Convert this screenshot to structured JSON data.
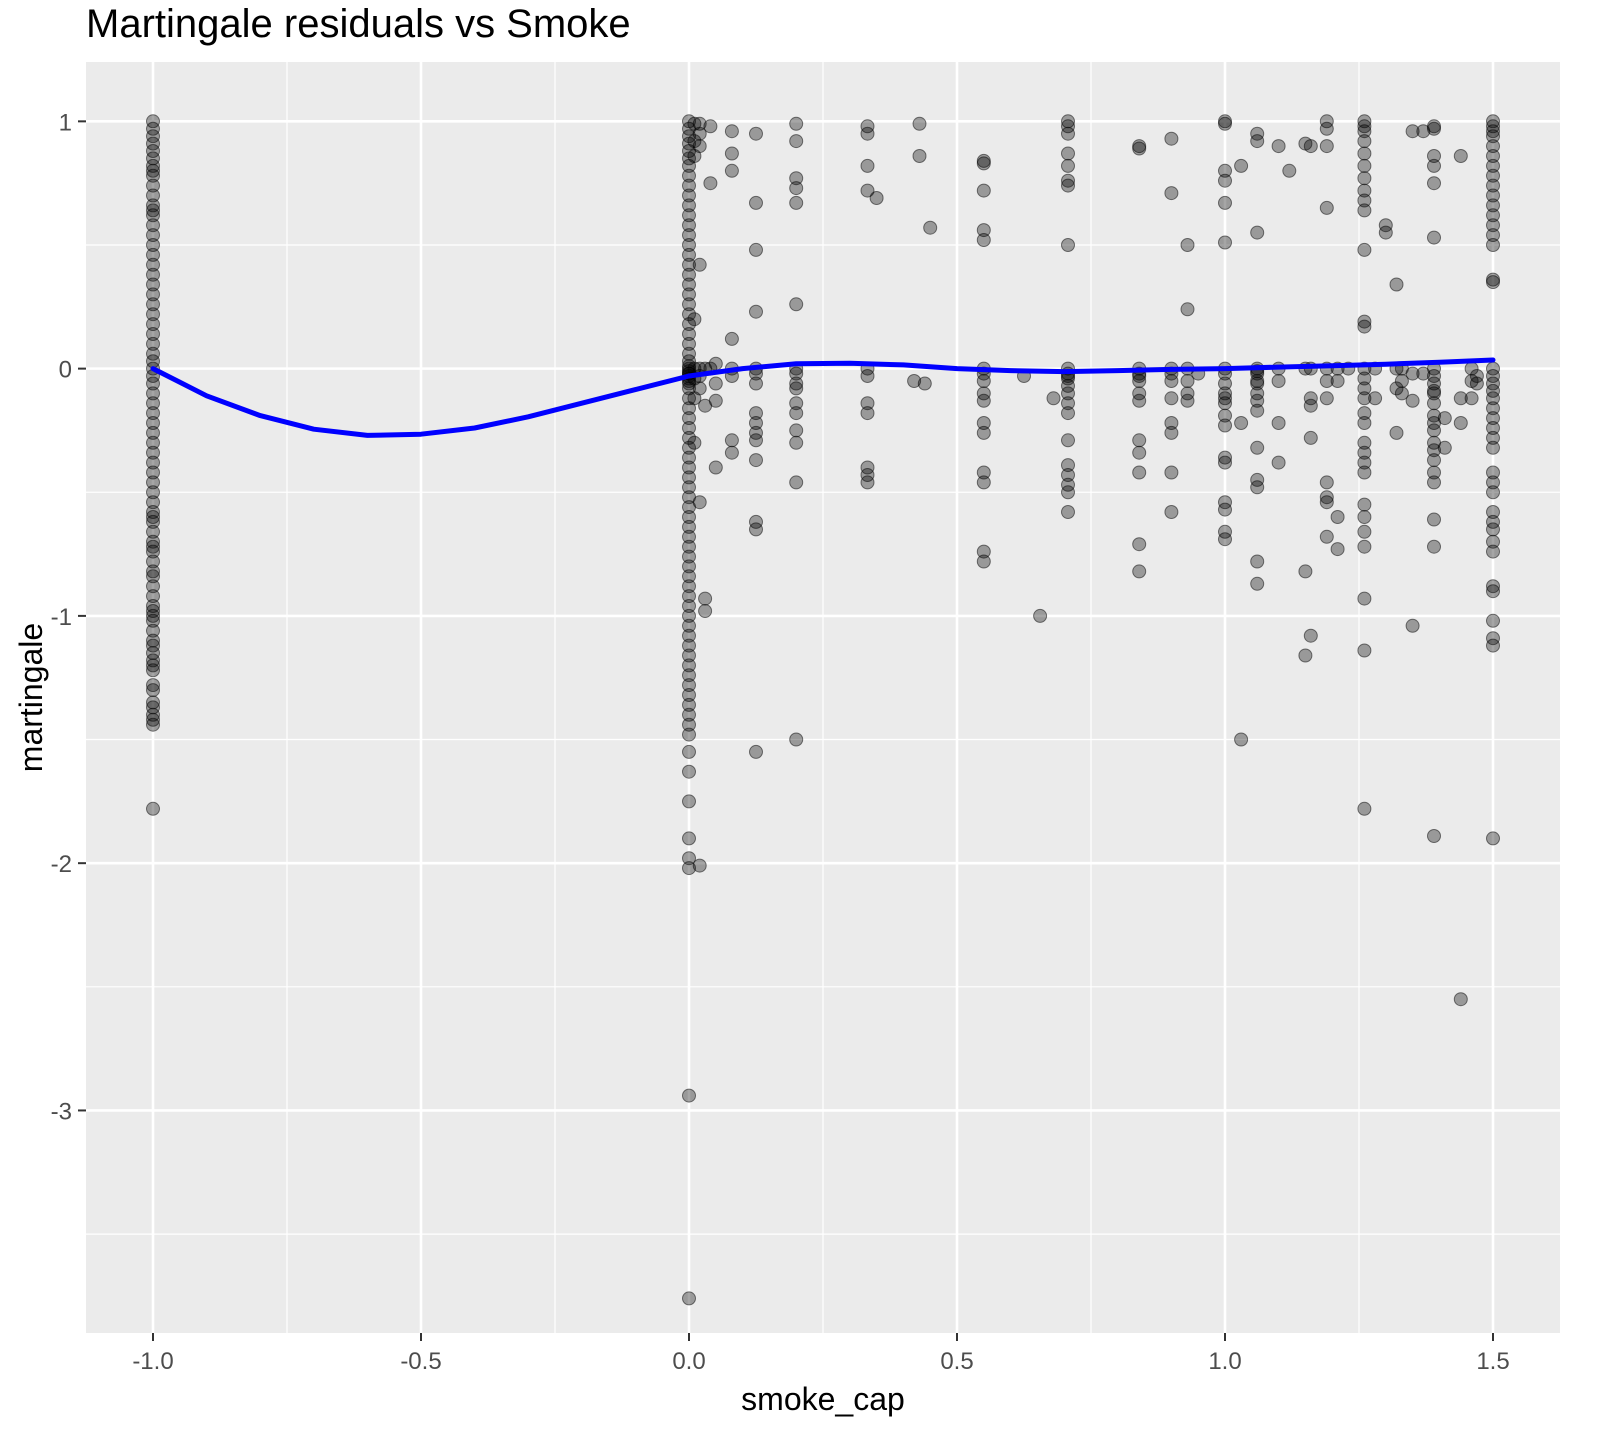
{
  "chart_data": {
    "type": "scatter",
    "title": "Martingale residuals vs Smoke",
    "xlabel": "smoke_cap",
    "ylabel": "martingale",
    "xlim": [
      -1.125,
      1.625
    ],
    "ylim": [
      -3.9,
      1.24
    ],
    "x_ticks": [
      -1.0,
      -0.5,
      0.0,
      0.5,
      1.0,
      1.5
    ],
    "x_tick_labels": [
      "-1.0",
      "-0.5",
      "0.0",
      "0.5",
      "1.0",
      "1.5"
    ],
    "y_ticks": [
      1,
      0,
      -1,
      -2,
      -3
    ],
    "y_tick_labels": [
      "1",
      "0",
      "-1",
      "-2",
      "-3"
    ],
    "grid": true,
    "background": "#ebebeb",
    "gridline_color": "#ffffff",
    "point_color": "#000000",
    "point_opacity": 0.35,
    "smooth_color": "#0000ff",
    "series": [
      {
        "type": "scatter",
        "x": [
          -1,
          -1,
          -1,
          -1,
          -1,
          -1,
          -1,
          -1,
          -1,
          -1,
          -1,
          -1,
          -1,
          -1,
          -1,
          -1,
          -1,
          -1,
          -1,
          -1,
          -1,
          -1,
          -1,
          -1,
          -1,
          -1,
          -1,
          -1,
          -1,
          -1,
          -1,
          -1,
          -1,
          -1,
          -1,
          -1,
          -1,
          -1,
          -1,
          -1,
          -1,
          -1,
          -1,
          -1,
          -1,
          -1,
          -1,
          -1,
          -1,
          -1,
          -1,
          -1,
          -1,
          -1,
          -1,
          -1,
          -1,
          -1,
          -1,
          -1,
          -1,
          -1,
          -1,
          -1,
          -1,
          -1,
          -1,
          -1,
          -1,
          -1,
          -1,
          -1,
          -1,
          -1,
          -1,
          0,
          0,
          0,
          0,
          0,
          0,
          0,
          0,
          0,
          0,
          0,
          0,
          0,
          0,
          0,
          0,
          0,
          0,
          0,
          0,
          0,
          0,
          0,
          0,
          0,
          0,
          0,
          0,
          0,
          0,
          0,
          0,
          0,
          0,
          0,
          0,
          0,
          0,
          0,
          0,
          0,
          0,
          0,
          0,
          0,
          0,
          0,
          0,
          0,
          0,
          0,
          0,
          0,
          0,
          0,
          0,
          0,
          0,
          0,
          0,
          0,
          0,
          0,
          0,
          0,
          0,
          0,
          0,
          0,
          0,
          0,
          0,
          0,
          0,
          0,
          0,
          0,
          0,
          0,
          0,
          0.01,
          0.01,
          0.01,
          0.01,
          0.01,
          0.01,
          0.01,
          0.01,
          0.02,
          0.02,
          0.02,
          0.02,
          0.02,
          0.02,
          0.02,
          0.02,
          0.02,
          0.03,
          0.03,
          0.03,
          0.03,
          0.04,
          0.04,
          0.04,
          0.05,
          0.05,
          0.05,
          0.05,
          0.08,
          0.08,
          0.08,
          0.08,
          0.08,
          0.08,
          0.08,
          0.08,
          0.125,
          0.125,
          0.125,
          0.125,
          0.125,
          0.125,
          0.125,
          0.125,
          0.125,
          0.125,
          0.125,
          0.125,
          0.125,
          0.125,
          0.125,
          0.2,
          0.2,
          0.2,
          0.2,
          0.2,
          0.2,
          0.2,
          0.2,
          0.2,
          0.2,
          0.2,
          0.2,
          0.2,
          0.2,
          0.2,
          0.2,
          0.333,
          0.333,
          0.333,
          0.333,
          0.333,
          0.333,
          0.333,
          0.333,
          0.333,
          0.333,
          0.333,
          0.35,
          0.42,
          0.43,
          0.43,
          0.44,
          0.45,
          0.55,
          0.55,
          0.55,
          0.55,
          0.55,
          0.55,
          0.55,
          0.55,
          0.55,
          0.55,
          0.55,
          0.55,
          0.55,
          0.55,
          0.55,
          0.55,
          0.625,
          0.655,
          0.68,
          0.707,
          0.707,
          0.707,
          0.707,
          0.707,
          0.707,
          0.707,
          0.707,
          0.707,
          0.707,
          0.707,
          0.707,
          0.707,
          0.707,
          0.707,
          0.707,
          0.707,
          0.707,
          0.707,
          0.707,
          0.707,
          0.707,
          0.84,
          0.84,
          0.84,
          0.84,
          0.84,
          0.84,
          0.84,
          0.84,
          0.84,
          0.84,
          0.84,
          0.84,
          0.84,
          0.9,
          0.9,
          0.9,
          0.9,
          0.9,
          0.9,
          0.9,
          0.9,
          0.9,
          0.9,
          0.93,
          0.93,
          0.93,
          0.93,
          0.93,
          0.93,
          0.95,
          1.0,
          1.0,
          1.0,
          1.0,
          1.0,
          1.0,
          1.0,
          1.0,
          1.0,
          1.0,
          1.0,
          1.0,
          1.0,
          1.0,
          1.0,
          1.0,
          1.0,
          1.0,
          1.0,
          1.0,
          1.03,
          1.03,
          1.03,
          1.06,
          1.06,
          1.06,
          1.06,
          1.06,
          1.06,
          1.06,
          1.06,
          1.06,
          1.06,
          1.06,
          1.06,
          1.06,
          1.06,
          1.06,
          1.06,
          1.1,
          1.1,
          1.1,
          1.1,
          1.1,
          1.12,
          1.15,
          1.15,
          1.15,
          1.15,
          1.16,
          1.16,
          1.16,
          1.16,
          1.16,
          1.16,
          1.19,
          1.19,
          1.19,
          1.19,
          1.19,
          1.19,
          1.19,
          1.19,
          1.19,
          1.19,
          1.19,
          1.21,
          1.21,
          1.21,
          1.21,
          1.23,
          1.26,
          1.26,
          1.26,
          1.26,
          1.26,
          1.26,
          1.26,
          1.26,
          1.26,
          1.26,
          1.26,
          1.26,
          1.26,
          1.26,
          1.26,
          1.26,
          1.26,
          1.26,
          1.26,
          1.26,
          1.26,
          1.26,
          1.26,
          1.26,
          1.26,
          1.26,
          1.26,
          1.26,
          1.26,
          1.26,
          1.28,
          1.28,
          1.3,
          1.3,
          1.32,
          1.32,
          1.32,
          1.32,
          1.33,
          1.33,
          1.33,
          1.35,
          1.35,
          1.35,
          1.35,
          1.37,
          1.37,
          1.39,
          1.39,
          1.39,
          1.39,
          1.39,
          1.39,
          1.39,
          1.39,
          1.39,
          1.39,
          1.39,
          1.39,
          1.39,
          1.39,
          1.39,
          1.39,
          1.39,
          1.39,
          1.39,
          1.39,
          1.39,
          1.39,
          1.39,
          1.41,
          1.41,
          1.44,
          1.44,
          1.44,
          1.44,
          1.46,
          1.46,
          1.46,
          1.47,
          1.47,
          1.5,
          1.5,
          1.5,
          1.5,
          1.5,
          1.5,
          1.5,
          1.5,
          1.5,
          1.5,
          1.5,
          1.5,
          1.5,
          1.5,
          1.5,
          1.5,
          1.5,
          1.5,
          1.5,
          1.5,
          1.5,
          1.5,
          1.5,
          1.5,
          1.5,
          1.5,
          1.5,
          1.5,
          1.5,
          1.5,
          1.5,
          1.5,
          1.5,
          1.5,
          1.5,
          1.5,
          1.5,
          1.5,
          1.5,
          1.5,
          1.5
        ],
        "y": [
          1.0,
          0.97,
          0.94,
          0.91,
          0.88,
          0.85,
          0.82,
          0.78,
          0.74,
          0.7,
          0.66,
          0.62,
          0.58,
          0.54,
          0.5,
          0.46,
          0.42,
          0.38,
          0.34,
          0.3,
          0.26,
          0.22,
          0.18,
          0.14,
          0.1,
          0.06,
          0.03,
          0.0,
          -0.03,
          -0.06,
          -0.1,
          -0.14,
          -0.18,
          -0.22,
          -0.26,
          -0.3,
          -0.34,
          -0.38,
          -0.42,
          -0.46,
          -0.5,
          -0.54,
          -0.58,
          -0.62,
          -0.66,
          -0.7,
          -0.74,
          -0.78,
          -0.82,
          -0.84,
          -0.88,
          -0.92,
          -0.96,
          -0.98,
          -1.0,
          -1.02,
          -1.06,
          -1.1,
          -1.12,
          -1.15,
          -1.18,
          -1.2,
          -1.22,
          -1.28,
          -1.3,
          -1.35,
          -1.37,
          -1.4,
          -1.42,
          -1.44,
          -1.78,
          -0.72,
          -0.6,
          0.64,
          0.8,
          1.0,
          0.97,
          0.94,
          0.91,
          0.88,
          0.85,
          0.82,
          0.78,
          0.74,
          0.7,
          0.66,
          0.62,
          0.58,
          0.54,
          0.5,
          0.46,
          0.42,
          0.38,
          0.34,
          0.3,
          0.26,
          0.22,
          0.18,
          0.14,
          0.1,
          0.06,
          0.03,
          0.0,
          -0.02,
          -0.05,
          -0.08,
          -0.12,
          -0.16,
          -0.2,
          -0.24,
          -0.28,
          -0.32,
          -0.36,
          -0.4,
          -0.44,
          -0.48,
          -0.52,
          -0.56,
          -0.6,
          -0.64,
          -0.68,
          -0.72,
          -0.76,
          -0.8,
          -0.84,
          -0.88,
          -0.92,
          -0.96,
          -1.0,
          -1.04,
          -1.08,
          -1.12,
          -1.16,
          -1.2,
          -1.24,
          -1.28,
          -1.32,
          -1.36,
          -1.4,
          -1.44,
          -1.48,
          -1.55,
          -1.63,
          -1.75,
          -1.9,
          -1.98,
          -2.02,
          -2.94,
          -3.76,
          -0.02,
          -0.04,
          -0.06,
          0.01,
          -0.01,
          -0.03,
          0.99,
          0.92,
          0.86,
          0.2,
          0.0,
          -0.04,
          -0.12,
          -0.3,
          0.99,
          0.95,
          0.9,
          0.42,
          0.0,
          -0.03,
          -0.08,
          -0.54,
          -2.01,
          0.0,
          -0.15,
          -0.93,
          -0.98,
          0.98,
          0.75,
          0.0,
          -0.06,
          -0.13,
          -0.4,
          0.02,
          0.96,
          0.87,
          0.8,
          0.12,
          0.0,
          -0.03,
          -0.29,
          -0.34,
          0.95,
          0.67,
          0.48,
          0.23,
          0.0,
          -0.02,
          -0.06,
          -0.18,
          -0.22,
          -0.26,
          -0.29,
          -0.37,
          -0.62,
          -0.65,
          -1.55,
          0.99,
          0.92,
          0.77,
          0.73,
          0.67,
          0.26,
          0.0,
          -0.02,
          -0.06,
          -0.14,
          -0.18,
          -0.25,
          -0.3,
          -0.46,
          -0.08,
          -1.5,
          0.98,
          0.95,
          0.82,
          0.72,
          0.0,
          -0.03,
          -0.14,
          -0.18,
          -0.4,
          -0.43,
          -0.46,
          0.69,
          -0.05,
          0.99,
          0.86,
          -0.06,
          0.57,
          0.84,
          0.83,
          0.72,
          0.56,
          0.52,
          0.0,
          -0.02,
          -0.05,
          -0.1,
          -0.13,
          -0.22,
          -0.26,
          -0.42,
          -0.46,
          -0.74,
          -0.78,
          -0.03,
          -1.0,
          -0.12,
          1.0,
          0.98,
          0.95,
          0.87,
          0.82,
          0.76,
          0.74,
          0.5,
          0.0,
          -0.02,
          -0.04,
          -0.07,
          -0.1,
          -0.14,
          -0.18,
          -0.29,
          -0.39,
          -0.43,
          -0.47,
          -0.5,
          -0.58,
          -0.03,
          0.9,
          0.89,
          0.0,
          -0.02,
          -0.05,
          -0.1,
          -0.13,
          -0.29,
          -0.34,
          -0.42,
          -0.71,
          -0.82,
          -0.03,
          0.93,
          0.71,
          0.0,
          -0.02,
          -0.05,
          -0.12,
          -0.22,
          -0.26,
          -0.42,
          -0.58,
          0.5,
          0.24,
          0.0,
          -0.05,
          -0.1,
          -0.13,
          -0.02,
          1.0,
          0.99,
          0.8,
          0.76,
          0.67,
          0.51,
          0.0,
          -0.02,
          -0.06,
          -0.1,
          -0.14,
          -0.19,
          -0.23,
          -0.36,
          -0.54,
          -0.57,
          -0.66,
          -0.69,
          -0.38,
          -0.12,
          0.82,
          -0.22,
          -1.5,
          0.95,
          0.92,
          0.55,
          0.0,
          -0.02,
          -0.05,
          -0.1,
          -0.13,
          -0.17,
          -0.32,
          -0.45,
          -0.48,
          -0.78,
          -0.87,
          -0.01,
          -0.06,
          0.9,
          0.0,
          -0.05,
          -0.22,
          -0.38,
          0.8,
          0.91,
          -0.82,
          -1.16,
          0.0,
          0.9,
          0.0,
          -0.12,
          -0.28,
          -1.08,
          -0.15,
          1.0,
          0.97,
          0.9,
          0.65,
          0.0,
          -0.05,
          -0.12,
          -0.46,
          -0.52,
          -0.54,
          -0.68,
          0.0,
          -0.6,
          -0.73,
          -0.05,
          0.0,
          1.0,
          0.98,
          0.96,
          0.92,
          0.87,
          0.82,
          0.77,
          0.72,
          0.68,
          0.64,
          0.48,
          0.19,
          0.17,
          0.0,
          -0.04,
          -0.08,
          -0.12,
          -0.18,
          -0.22,
          -0.3,
          -0.34,
          -0.38,
          -0.42,
          -0.55,
          -0.6,
          -0.66,
          -0.72,
          -0.93,
          -1.14,
          -1.78,
          0.0,
          -0.12,
          0.58,
          0.55,
          0.34,
          0.0,
          -0.08,
          -0.26,
          0.0,
          -0.05,
          -0.1,
          0.96,
          -0.13,
          -1.04,
          -0.02,
          0.96,
          -0.02,
          0.98,
          0.97,
          0.86,
          0.82,
          0.75,
          0.53,
          0.0,
          -0.03,
          -0.06,
          -0.1,
          -0.14,
          -0.19,
          -0.22,
          -0.25,
          -0.3,
          -0.33,
          -0.37,
          -0.42,
          -0.46,
          -0.61,
          -0.72,
          -1.89,
          -0.09,
          -0.2,
          -0.32,
          0.86,
          -0.12,
          -0.22,
          -2.55,
          -0.05,
          0.0,
          -0.12,
          -0.03,
          -0.06,
          1.0,
          0.98,
          0.96,
          0.94,
          0.9,
          0.86,
          0.82,
          0.78,
          0.74,
          0.7,
          0.66,
          0.62,
          0.58,
          0.54,
          0.5,
          0.36,
          0.35,
          0.0,
          -0.03,
          -0.06,
          -0.09,
          -0.12,
          -0.16,
          -0.2,
          -0.24,
          -0.28,
          -0.32,
          -0.42,
          -0.46,
          -0.5,
          -0.58,
          -0.62,
          -0.7,
          -0.74,
          -0.88,
          -0.9,
          -1.02,
          -1.09,
          -1.12,
          -1.9,
          -0.65
        ]
      },
      {
        "type": "line",
        "name": "",
        "x": [
          -1.0,
          -0.9,
          -0.8,
          -0.7,
          -0.6,
          -0.5,
          -0.4,
          -0.3,
          -0.2,
          -0.1,
          0.0,
          0.1,
          0.2,
          0.3,
          0.4,
          0.5,
          0.6,
          0.7,
          0.8,
          0.9,
          1.0,
          1.1,
          1.2,
          1.3,
          1.4,
          1.5
        ],
        "y": [
          0.0,
          -0.11,
          -0.19,
          -0.245,
          -0.27,
          -0.265,
          -0.24,
          -0.195,
          -0.14,
          -0.085,
          -0.03,
          0.0,
          0.02,
          0.022,
          0.015,
          0.0,
          -0.008,
          -0.012,
          -0.008,
          -0.003,
          0.0,
          0.006,
          0.012,
          0.018,
          0.026,
          0.035
        ]
      }
    ]
  }
}
